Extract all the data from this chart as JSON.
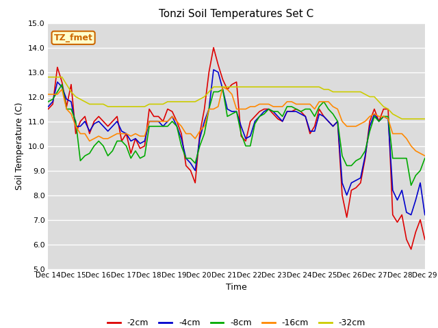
{
  "title": "Tonzi Soil Temperatures Set C",
  "xlabel": "Time",
  "ylabel": "Soil Temperature (C)",
  "ylim": [
    5.0,
    15.0
  ],
  "yticks": [
    5.0,
    6.0,
    7.0,
    8.0,
    9.0,
    10.0,
    11.0,
    12.0,
    13.0,
    14.0,
    15.0
  ],
  "figure_bg": "#ffffff",
  "plot_bg": "#dcdcdc",
  "annotation_label": "TZ_fmet",
  "annotation_color": "#cc6600",
  "annotation_bg": "#ffffcc",
  "series": {
    "neg2cm": {
      "label": "-2cm",
      "color": "#dd0000",
      "linewidth": 1.2
    },
    "neg4cm": {
      "label": "-4cm",
      "color": "#0000cc",
      "linewidth": 1.2
    },
    "neg8cm": {
      "label": "-8cm",
      "color": "#00aa00",
      "linewidth": 1.2
    },
    "neg16cm": {
      "label": "-16cm",
      "color": "#ff8800",
      "linewidth": 1.2
    },
    "neg32cm": {
      "label": "-32cm",
      "color": "#cccc00",
      "linewidth": 1.2
    }
  },
  "x_labels": [
    "Dec 14",
    "Dec 15",
    "Dec 16",
    "Dec 17",
    "Dec 18",
    "Dec 19",
    "Dec 20",
    "Dec 21",
    "Dec 22",
    "Dec 23",
    "Dec 24",
    "Dec 25",
    "Dec 26",
    "Dec 27",
    "Dec 28",
    "Dec 29"
  ],
  "neg2cm": [
    11.5,
    11.7,
    13.2,
    12.6,
    11.6,
    12.5,
    10.5,
    11.0,
    11.2,
    10.5,
    11.0,
    11.2,
    11.0,
    10.8,
    11.0,
    11.2,
    10.2,
    10.5,
    9.7,
    10.3,
    9.9,
    10.0,
    11.5,
    11.2,
    11.2,
    11.0,
    11.5,
    11.4,
    11.0,
    10.5,
    9.2,
    9.0,
    8.5,
    10.5,
    11.5,
    13.0,
    14.0,
    13.3,
    12.7,
    12.3,
    12.5,
    12.6,
    10.4,
    10.2,
    11.0,
    11.2,
    11.4,
    11.5,
    11.5,
    11.3,
    11.1,
    11.0,
    11.4,
    11.4,
    11.5,
    11.4,
    11.2,
    10.5,
    10.8,
    11.5,
    11.2,
    11.0,
    10.8,
    11.0,
    8.0,
    7.1,
    8.2,
    8.3,
    8.5,
    9.5,
    11.0,
    11.5,
    11.0,
    11.5,
    11.5,
    7.2,
    6.9,
    7.2,
    6.2,
    5.8,
    6.5,
    7.0,
    6.2
  ],
  "neg4cm": [
    11.6,
    11.8,
    12.6,
    12.4,
    11.9,
    11.8,
    10.8,
    10.8,
    11.0,
    10.6,
    10.9,
    11.0,
    10.8,
    10.6,
    10.8,
    11.0,
    10.6,
    10.5,
    10.2,
    10.3,
    10.1,
    10.2,
    11.0,
    11.0,
    11.0,
    10.8,
    11.0,
    11.2,
    10.8,
    10.3,
    9.5,
    9.3,
    9.0,
    10.3,
    11.0,
    11.5,
    13.1,
    13.0,
    12.3,
    11.5,
    11.4,
    11.4,
    10.8,
    10.3,
    10.4,
    11.0,
    11.2,
    11.4,
    11.5,
    11.4,
    11.2,
    11.0,
    11.4,
    11.4,
    11.4,
    11.3,
    11.2,
    10.6,
    10.6,
    11.3,
    11.2,
    11.0,
    10.8,
    11.0,
    8.5,
    8.0,
    8.5,
    8.6,
    8.7,
    9.6,
    10.8,
    11.3,
    11.0,
    11.2,
    11.1,
    8.2,
    7.8,
    8.2,
    7.3,
    7.2,
    7.8,
    8.5,
    7.2
  ],
  "neg8cm": [
    11.8,
    11.9,
    12.2,
    12.5,
    11.5,
    11.5,
    11.0,
    9.4,
    9.6,
    9.7,
    10.0,
    10.2,
    10.0,
    9.6,
    9.8,
    10.2,
    10.2,
    10.0,
    9.5,
    9.8,
    9.5,
    9.6,
    10.8,
    10.8,
    10.8,
    10.8,
    10.8,
    11.0,
    10.8,
    10.0,
    9.5,
    9.5,
    9.3,
    10.0,
    10.5,
    11.5,
    12.2,
    12.2,
    12.3,
    11.2,
    11.3,
    11.4,
    10.5,
    10.0,
    10.0,
    10.9,
    11.2,
    11.3,
    11.5,
    11.4,
    11.4,
    11.2,
    11.6,
    11.6,
    11.5,
    11.4,
    11.5,
    11.5,
    11.2,
    11.6,
    11.8,
    11.5,
    11.3,
    11.0,
    9.6,
    9.2,
    9.2,
    9.4,
    9.5,
    9.8,
    10.6,
    11.2,
    11.0,
    11.2,
    11.2,
    9.5,
    9.5,
    9.5,
    9.5,
    8.4,
    8.8,
    9.0,
    9.5
  ],
  "neg16cm": [
    12.1,
    12.1,
    12.1,
    12.3,
    11.5,
    11.3,
    10.8,
    10.5,
    10.5,
    10.2,
    10.3,
    10.4,
    10.3,
    10.3,
    10.4,
    10.5,
    10.5,
    10.5,
    10.4,
    10.5,
    10.4,
    10.4,
    11.0,
    11.0,
    11.0,
    11.0,
    11.0,
    11.2,
    11.0,
    10.8,
    10.5,
    10.5,
    10.3,
    10.6,
    10.8,
    11.5,
    11.5,
    11.6,
    12.4,
    12.3,
    12.1,
    11.5,
    11.5,
    11.5,
    11.6,
    11.6,
    11.7,
    11.7,
    11.7,
    11.6,
    11.6,
    11.6,
    11.8,
    11.8,
    11.7,
    11.7,
    11.7,
    11.7,
    11.5,
    11.8,
    11.8,
    11.8,
    11.6,
    11.5,
    11.0,
    10.8,
    10.8,
    10.8,
    10.9,
    11.0,
    11.2,
    11.3,
    11.2,
    11.2,
    11.1,
    10.5,
    10.5,
    10.5,
    10.3,
    10.0,
    9.8,
    9.7,
    9.6
  ],
  "neg32cm": [
    12.8,
    12.8,
    12.8,
    12.8,
    12.5,
    12.2,
    12.0,
    11.9,
    11.8,
    11.7,
    11.7,
    11.7,
    11.7,
    11.6,
    11.6,
    11.6,
    11.6,
    11.6,
    11.6,
    11.6,
    11.6,
    11.6,
    11.7,
    11.7,
    11.7,
    11.7,
    11.8,
    11.8,
    11.8,
    11.8,
    11.8,
    11.8,
    11.8,
    11.9,
    12.0,
    12.2,
    12.4,
    12.4,
    12.4,
    12.4,
    12.4,
    12.4,
    12.4,
    12.4,
    12.4,
    12.4,
    12.4,
    12.4,
    12.4,
    12.4,
    12.4,
    12.4,
    12.4,
    12.4,
    12.4,
    12.4,
    12.4,
    12.4,
    12.4,
    12.4,
    12.3,
    12.3,
    12.2,
    12.2,
    12.2,
    12.2,
    12.2,
    12.2,
    12.2,
    12.1,
    12.0,
    12.0,
    11.8,
    11.6,
    11.5,
    11.3,
    11.2,
    11.1,
    11.1,
    11.1,
    11.1,
    11.1,
    11.1
  ]
}
